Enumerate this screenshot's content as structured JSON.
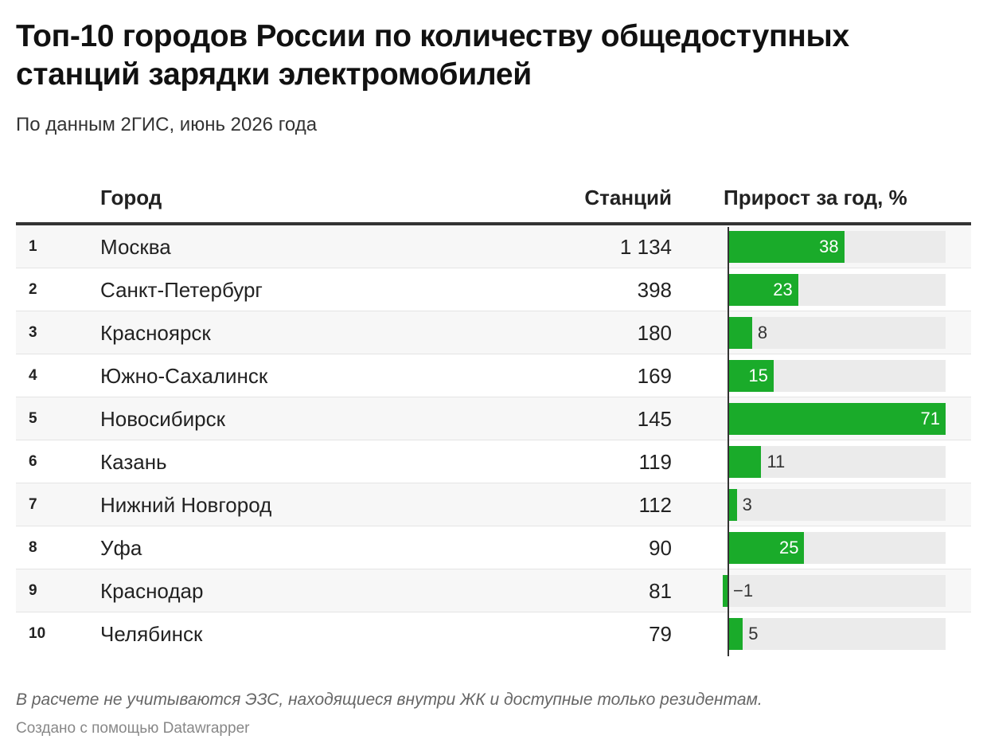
{
  "title": "Топ-10 городов России по количеству общедоступных станций зарядки электромобилей",
  "subtitle": "По данным 2ГИС, июнь 2026 года",
  "table": {
    "headers": {
      "city": "Город",
      "count": "Станций",
      "growth": "Прирост за год, %"
    }
  },
  "chart_data": {
    "type": "table",
    "bar_color": "#1aab2a",
    "track_color": "#ebebeb",
    "bar_range": [
      -1,
      71
    ],
    "rows": [
      {
        "rank": "1",
        "city": "Москва",
        "stations": "1 134",
        "growth": 38,
        "growth_label": "38"
      },
      {
        "rank": "2",
        "city": "Санкт-Петербург",
        "stations": "398",
        "growth": 23,
        "growth_label": "23"
      },
      {
        "rank": "3",
        "city": "Красноярск",
        "stations": "180",
        "growth": 8,
        "growth_label": "8"
      },
      {
        "rank": "4",
        "city": "Южно-Сахалинск",
        "stations": "169",
        "growth": 15,
        "growth_label": "15"
      },
      {
        "rank": "5",
        "city": "Новосибирск",
        "stations": "145",
        "growth": 71,
        "growth_label": "71"
      },
      {
        "rank": "6",
        "city": "Казань",
        "stations": "119",
        "growth": 11,
        "growth_label": "11"
      },
      {
        "rank": "7",
        "city": "Нижний Новгород",
        "stations": "112",
        "growth": 3,
        "growth_label": "3"
      },
      {
        "rank": "8",
        "city": "Уфа",
        "stations": "90",
        "growth": 25,
        "growth_label": "25"
      },
      {
        "rank": "9",
        "city": "Краснодар",
        "stations": "81",
        "growth": -1,
        "growth_label": "−1"
      },
      {
        "rank": "10",
        "city": "Челябинск",
        "stations": "79",
        "growth": 5,
        "growth_label": "5"
      }
    ]
  },
  "footer": {
    "note": "В расчете не учитываются ЭЗС, находящиеся внутри ЖК и доступные только резидентам.",
    "credit": "Создано с помощью Datawrapper"
  }
}
